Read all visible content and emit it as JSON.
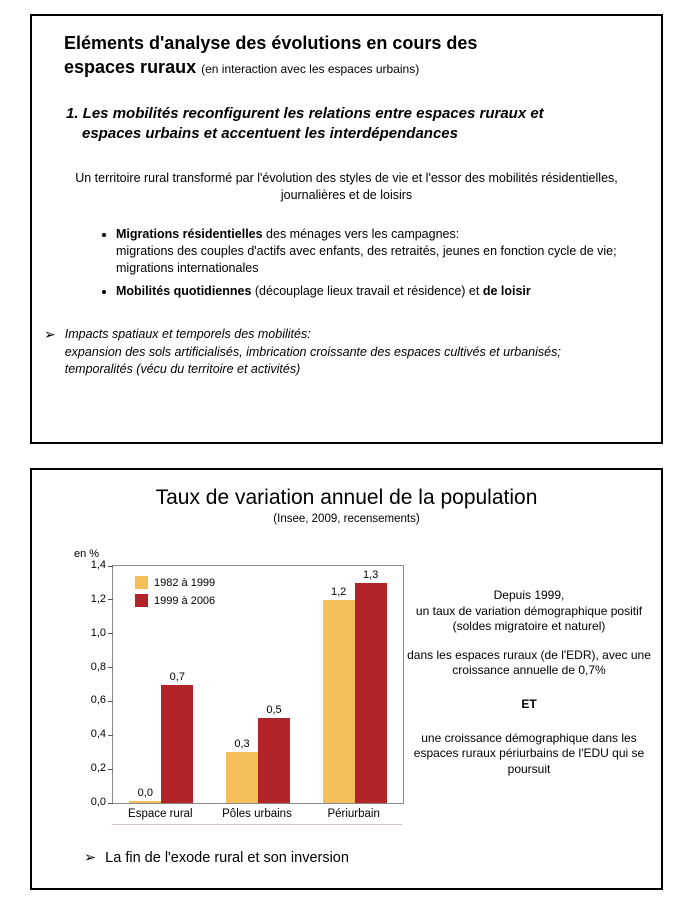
{
  "slide1": {
    "title_line1": "Eléments d'analyse des évolutions en cours des",
    "title_line2": "espaces ruraux ",
    "title_suffix": "(en interaction avec les espaces urbains)",
    "heading_line1": "1. Les mobilités reconfigurent les relations entre espaces ruraux et",
    "heading_line2": "espaces urbains et accentuent les interdépendances",
    "paragraph": "Un territoire rural transformé par l'évolution des styles de vie et l'essor des mobilités résidentielles, journalières et de loisirs",
    "bullet1_lead": "Migrations résidentielles",
    "bullet1_rest1": " des ménages vers les campagnes:",
    "bullet1_rest2": "migrations des couples d'actifs avec enfants, des retraités, jeunes en fonction cycle de vie; migrations internationales",
    "bullet2_b1": "Mobilités quotidiennes",
    "bullet2_mid": " (découplage lieux travail et résidence) et ",
    "bullet2_b2": "de loisir",
    "arrow_glyph": "➢",
    "arrow_line1": "Impacts spatiaux et temporels des mobilités:",
    "arrow_line2": "expansion des sols artificialisés, imbrication croissante des espaces cultivés et urbanisés; temporalités (vécu du territoire et activités)"
  },
  "slide2": {
    "title": "Taux de variation annuel de la population",
    "subtitle": "(Insee, 2009, recensements)",
    "right_p1a": "Depuis 1999,",
    "right_p1b": "un taux de variation démographique positif (soldes migratoire et naturel)",
    "right_p2": "dans les espaces ruraux (de l'EDR), avec une croissance annuelle de 0,7%",
    "right_p3": "ET",
    "right_p4": "une croissance démographique dans les espaces ruraux périurbains de l'EDU qui se poursuit",
    "footer_glyph": "➢",
    "footer_text": "La fin de l'exode rural et son inversion"
  },
  "chart_data": {
    "type": "bar",
    "title": "Taux de variation annuel de la population",
    "subtitle": "(Insee, 2009, recensements)",
    "unit_label": "en %",
    "categories": [
      "Espace rural",
      "Pôles urbains",
      "Périurbain"
    ],
    "series": [
      {
        "name": "1982 à 1999",
        "color": "#F5C05A",
        "values": [
          0.0,
          0.3,
          1.2
        ],
        "labels": [
          "0,0",
          "0,3",
          "1,2"
        ]
      },
      {
        "name": "1999 à 2006",
        "color": "#B3242A",
        "values": [
          0.7,
          0.5,
          1.3
        ],
        "labels": [
          "0,7",
          "0,5",
          "1,3"
        ]
      }
    ],
    "ylim": [
      0,
      1.4
    ],
    "grid": false,
    "legend_position": "upper-left-inside",
    "yticks": [
      {
        "v": 0.0,
        "label": "0,0"
      },
      {
        "v": 0.2,
        "label": "0,2"
      },
      {
        "v": 0.4,
        "label": "0,4"
      },
      {
        "v": 0.6,
        "label": "0,6"
      },
      {
        "v": 0.8,
        "label": "0,8"
      },
      {
        "v": 1.0,
        "label": "1,0"
      },
      {
        "v": 1.2,
        "label": "1,2"
      },
      {
        "v": 1.4,
        "label": "1,4"
      }
    ]
  }
}
